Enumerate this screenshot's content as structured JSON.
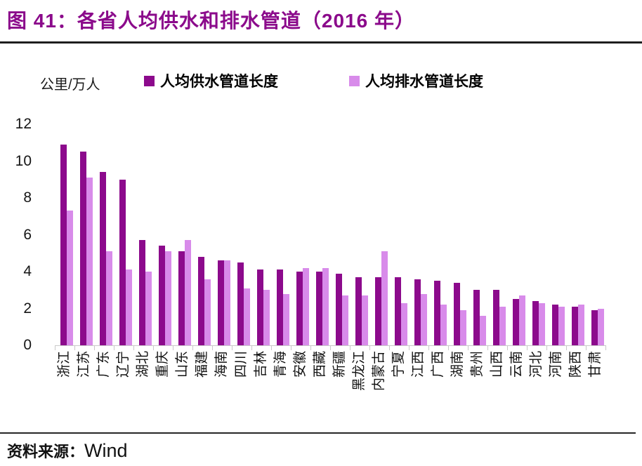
{
  "title": "图 41：各省人均供水和排水管道（2016 年）",
  "unit_label": "公里/万人",
  "legend": [
    {
      "label": "人均供水管道长度",
      "color": "#8C0A8C"
    },
    {
      "label": "人均排水管道长度",
      "color": "#D88BEA"
    }
  ],
  "source": {
    "prefix": "资料来源：",
    "name": "Wind"
  },
  "colors": {
    "title": "#8B0A8B",
    "supply_series": "#8C0A8C",
    "drainage_series": "#D88BEA",
    "axis_gray": "#c9c9c9",
    "rule_dark": "#1e1e1e"
  },
  "chart_data": {
    "type": "bar",
    "title": "图 41：各省人均供水和排水管道（2016 年）",
    "xlabel": "",
    "ylabel": "公里/万人",
    "ylim": [
      0,
      12
    ],
    "yticks": [
      0,
      2,
      4,
      6,
      8,
      10,
      12
    ],
    "grid": false,
    "legend_position": "top",
    "categories": [
      "浙江",
      "江苏",
      "广东",
      "辽宁",
      "湖北",
      "重庆",
      "山东",
      "福建",
      "海南",
      "四川",
      "吉林",
      "青海",
      "安徽",
      "西藏",
      "新疆",
      "黑龙江",
      "内蒙古",
      "宁夏",
      "江西",
      "广西",
      "湖南",
      "贵州",
      "山西",
      "云南",
      "河北",
      "河南",
      "陕西",
      "甘肃"
    ],
    "series": [
      {
        "name": "人均供水管道长度",
        "color": "#8C0A8C",
        "values": [
          10.9,
          10.5,
          9.4,
          9.0,
          5.7,
          5.4,
          5.1,
          4.8,
          4.6,
          4.5,
          4.1,
          4.1,
          4.0,
          4.0,
          3.9,
          3.7,
          3.7,
          3.7,
          3.6,
          3.5,
          3.4,
          3.0,
          3.0,
          2.5,
          2.4,
          2.2,
          2.1,
          1.9
        ]
      },
      {
        "name": "人均排水管道长度",
        "color": "#D88BEA",
        "values": [
          7.3,
          9.1,
          5.1,
          4.1,
          4.0,
          5.1,
          5.7,
          3.6,
          4.6,
          3.1,
          3.0,
          2.8,
          4.2,
          4.2,
          2.7,
          2.7,
          5.1,
          2.3,
          2.8,
          2.2,
          1.9,
          1.6,
          2.1,
          2.7,
          2.3,
          2.1,
          2.2,
          2.0
        ]
      }
    ]
  }
}
